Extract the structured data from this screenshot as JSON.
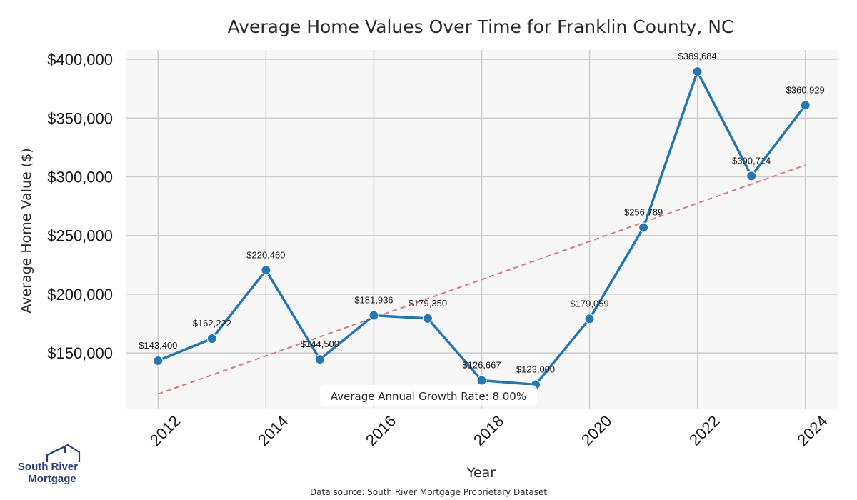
{
  "chart_data": {
    "type": "line",
    "title": "Average Home Values Over Time for Franklin County, NC",
    "xlabel": "Year",
    "ylabel": "Average Home Value ($)",
    "x": [
      2012,
      2013,
      2014,
      2015,
      2016,
      2017,
      2018,
      2019,
      2020,
      2021,
      2022,
      2023,
      2024
    ],
    "series": [
      {
        "values": [
          143400,
          162222,
          220460,
          144500,
          181936,
          179350,
          126667,
          123000,
          179059,
          256789,
          389684,
          300714,
          360929
        ],
        "color": "#2676b0"
      }
    ],
    "data_labels": [
      "$143,400",
      "$162,222",
      "$220,460",
      "$144,500",
      "$181,936",
      "$179,350",
      "$126,667",
      "$123,000",
      "$179,059",
      "$256,789",
      "$389,684",
      "$300,714",
      "$360,929"
    ],
    "trendline": {
      "x": [
        2012,
        2024
      ],
      "y": [
        115000,
        310000
      ],
      "color": "#d97a7a",
      "style": "dashed"
    },
    "xlim": [
      2011.4,
      2024.6
    ],
    "ylim": [
      102000,
      408000
    ],
    "xticks": [
      2012,
      2014,
      2016,
      2018,
      2020,
      2022,
      2024
    ],
    "xtick_labels": [
      "2012",
      "2014",
      "2016",
      "2018",
      "2020",
      "2022",
      "2024"
    ],
    "yticks": [
      150000,
      200000,
      250000,
      300000,
      350000,
      400000
    ],
    "ytick_labels": [
      "$150,000",
      "$200,000",
      "$250,000",
      "$300,000",
      "$350,000",
      "$400,000"
    ],
    "annotation": "Average Annual Growth Rate: 8.00%",
    "grid": true,
    "plot_background": "#f7f7f7",
    "grid_color": "#cccccc"
  },
  "source_note": "Data source: South River Mortgage Proprietary Dataset",
  "logo": {
    "line1": "South River",
    "line2": "Mortgage",
    "color": "#2b3b7a"
  }
}
